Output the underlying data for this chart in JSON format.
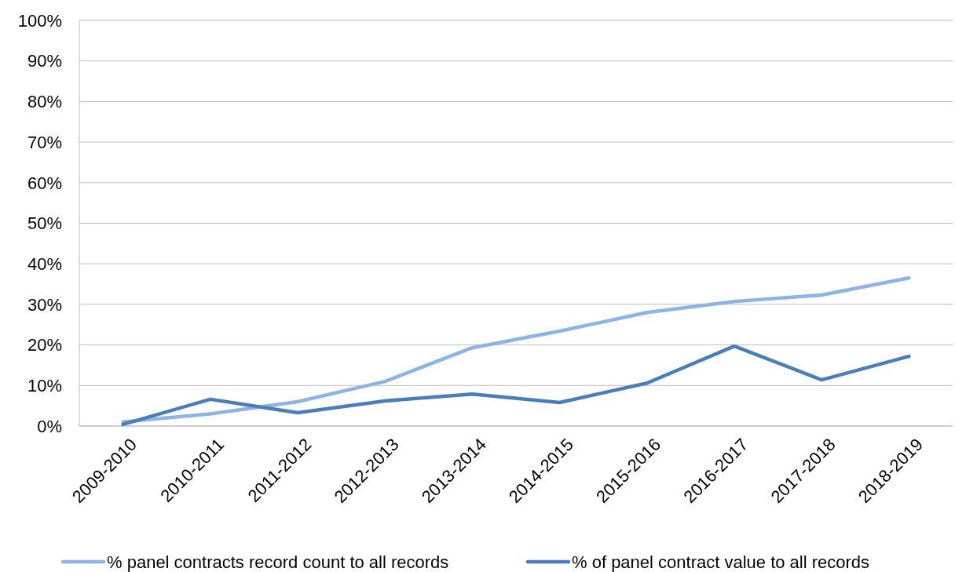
{
  "chart_data": {
    "type": "line",
    "categories": [
      "2009-2010",
      "2010-2011",
      "2011-2012",
      "2012-2013",
      "2013-2014",
      "2014-2015",
      "2015-2016",
      "2016-2017",
      "2017-2018",
      "2018-2019"
    ],
    "series": [
      {
        "name": "% panel contracts record count to all records",
        "color": "#8eb4e3",
        "values": [
          1,
          3,
          6,
          11,
          19.3,
          23.4,
          28,
          30.7,
          32.3,
          36.5
        ]
      },
      {
        "name": "% of panel contract value to all records",
        "color": "#4a7ebb",
        "values": [
          0.4,
          6.6,
          3.3,
          6.2,
          7.9,
          5.8,
          10.6,
          19.7,
          11.4,
          17.2
        ]
      }
    ],
    "ylim": [
      0,
      100
    ],
    "yticks": [
      {
        "value": 0,
        "label": "0%"
      },
      {
        "value": 10,
        "label": "10%"
      },
      {
        "value": 20,
        "label": "20%"
      },
      {
        "value": 30,
        "label": "30%"
      },
      {
        "value": 40,
        "label": "40%"
      },
      {
        "value": 50,
        "label": "50%"
      },
      {
        "value": 60,
        "label": "60%"
      },
      {
        "value": 70,
        "label": "70%"
      },
      {
        "value": 80,
        "label": "80%"
      },
      {
        "value": 90,
        "label": "90%"
      },
      {
        "value": 100,
        "label": "100%"
      }
    ],
    "grid": "y",
    "legend": "bottom",
    "marker": "none",
    "line_style": "solid"
  }
}
